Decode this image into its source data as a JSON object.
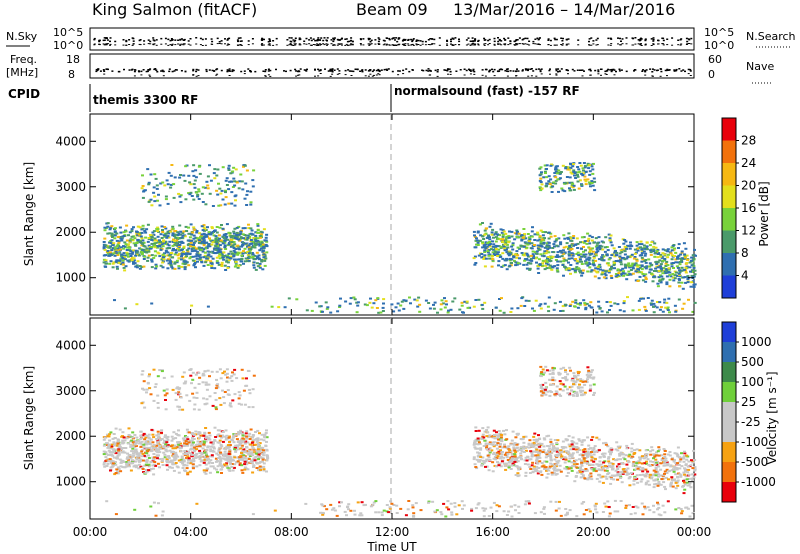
{
  "header": {
    "site": "King Salmon (fitACF)",
    "beam": "Beam 09",
    "dates": "13/Mar/2016 – 14/Mar/2016"
  },
  "noise_panel": {
    "left_label": "N.Sky",
    "left_ticks": [
      "10^5",
      "10^0"
    ],
    "right_label": "N.Search",
    "right_ticks": [
      "10^5",
      "10^0"
    ]
  },
  "freq_panel": {
    "left_label_1": "Freq.",
    "left_label_2": "[MHz]",
    "left_ticks": [
      "18",
      "8"
    ],
    "right_label": "Nave",
    "right_ticks": [
      "60",
      "0"
    ]
  },
  "cpid_panel": {
    "label": "CPID",
    "programs": [
      "themis 3300 RF",
      "normalsound (fast) -157 RF"
    ]
  },
  "chart_data": [
    {
      "type": "heatmap",
      "title": "",
      "xlabel": "Time UT",
      "ylabel": "Slant Range [km]",
      "xlim": [
        0,
        24
      ],
      "ylim": [
        180,
        4600
      ],
      "yticks": [
        "1000",
        "2000",
        "3000",
        "4000"
      ],
      "xticks": [
        "00:00",
        "04:00",
        "08:00",
        "12:00",
        "16:00",
        "20:00",
        "00:00"
      ],
      "colorbar": {
        "label": "Power [dB]",
        "ticks": [
          "28",
          "24",
          "20",
          "16",
          "12",
          "8",
          "4"
        ],
        "colors": [
          "#e8000b",
          "#f2720c",
          "#f6b812",
          "#e3df1c",
          "#78d23a",
          "#4a9a6a",
          "#2f6fb0",
          "#1f3fd8"
        ]
      },
      "regions": [
        {
          "name": "morning band",
          "t": [
            0.5,
            7.0
          ],
          "r": [
            1150,
            2250
          ]
        },
        {
          "name": "morning upper scatter",
          "t": [
            2.0,
            6.5
          ],
          "r": [
            2600,
            3500
          ]
        },
        {
          "name": "evening band",
          "t": [
            15.2,
            24.0
          ],
          "r": [
            1200,
            2300
          ]
        },
        {
          "name": "evening upper patch",
          "t": [
            17.8,
            20.0
          ],
          "r": [
            2900,
            3550
          ]
        },
        {
          "name": "near-range scatter",
          "t": [
            0,
            24
          ],
          "r": [
            250,
            600
          ]
        }
      ]
    },
    {
      "type": "heatmap",
      "title": "",
      "xlabel": "Time UT",
      "ylabel": "Slant Range [km]",
      "xlim": [
        0,
        24
      ],
      "ylim": [
        180,
        4600
      ],
      "yticks": [
        "1000",
        "2000",
        "3000",
        "4000"
      ],
      "xticks": [
        "00:00",
        "04:00",
        "08:00",
        "12:00",
        "16:00",
        "20:00",
        "00:00"
      ],
      "colorbar": {
        "label": "Velocity [m s⁻¹]",
        "ticks": [
          "1000",
          "500",
          "100",
          "25",
          "-25",
          "-100",
          "-500",
          "-1000"
        ],
        "colors": [
          "#1f3fd8",
          "#2f6fb0",
          "#3d8a4a",
          "#6fcf3a",
          "#c8c8c8",
          "#c8c8c8",
          "#f6a212",
          "#f2720c",
          "#e8000b"
        ]
      },
      "regions": [
        {
          "name": "morning band",
          "t": [
            0.5,
            7.0
          ],
          "r": [
            1150,
            2250
          ]
        },
        {
          "name": "morning upper scatter",
          "t": [
            2.0,
            6.5
          ],
          "r": [
            2600,
            3500
          ]
        },
        {
          "name": "evening band",
          "t": [
            15.2,
            24.0
          ],
          "r": [
            1200,
            2300
          ]
        },
        {
          "name": "evening upper patch",
          "t": [
            17.8,
            20.0
          ],
          "r": [
            2900,
            3550
          ]
        },
        {
          "name": "near-range scatter",
          "t": [
            0,
            24
          ],
          "r": [
            250,
            600
          ]
        }
      ]
    }
  ],
  "time_axis_label": "Time UT"
}
